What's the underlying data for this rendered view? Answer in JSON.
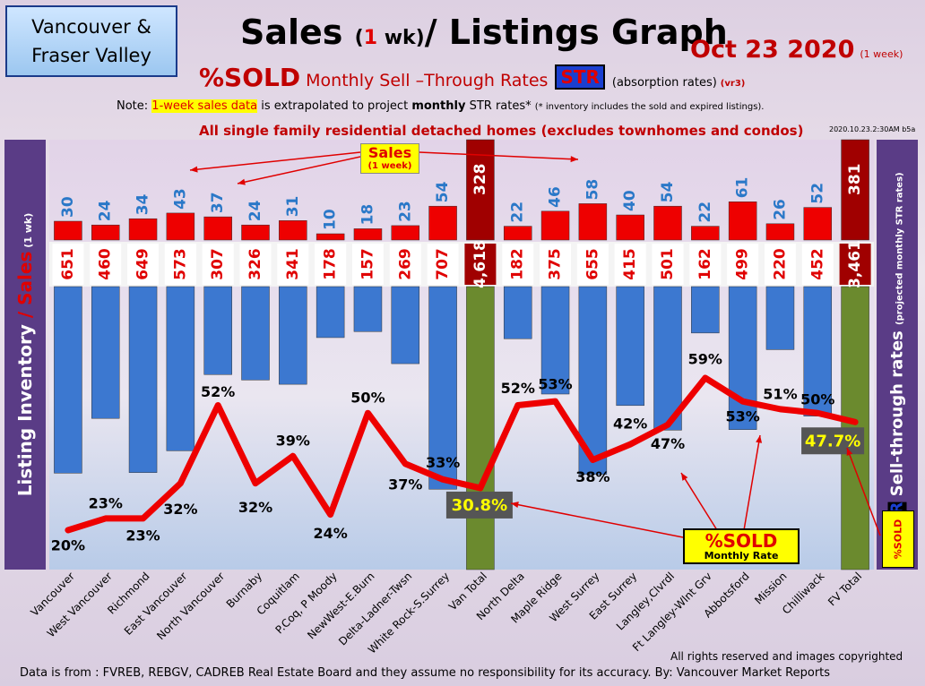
{
  "region": {
    "line1": "Vancouver &",
    "line2": "Fraser Valley"
  },
  "title": {
    "part1": "Sales ",
    "paren_open": "(",
    "num": "1",
    "wk": " wk)",
    "part2": "/ Listings Graph"
  },
  "date": {
    "text": "Oct 23  2020",
    "note": "(1 week)"
  },
  "subtitle": {
    "big": "%SOLD",
    "rest": " Monthly Sell –Through Rates",
    "badge": "STR",
    "abs": "(absorption rates)",
    "vr": "(vr3)"
  },
  "note": {
    "prefix": "Note: ",
    "highlight": "1-week sales data",
    "mid": " is extrapolated to project ",
    "bold": "monthly",
    "suffix": " STR rates* ",
    "small": "(* inventory includes the sold and expired listings)."
  },
  "scope": "All single family residential detached homes (excludes townhomes and condos)",
  "stamp": "2020.10.23.2:30AM b5a",
  "left_axis": {
    "part1": "Listing Inventory ",
    "slash": "/ ",
    "part2": "Sales",
    "small": " (1 wk)"
  },
  "right_axis": {
    "part1": "Sell-through rates ",
    "small": "(projected monthly STR rates)",
    "str": "STR",
    "sold": "%SOLD"
  },
  "sales_callout": {
    "title": "Sales",
    "sub": "(1 week)"
  },
  "sold_box": {
    "title": "%SOLD",
    "sub": "Monthly Rate"
  },
  "footer": {
    "rights": "All rights reserved and  images copyrighted",
    "source": "Data is from : FVREB, REBGV, CADREB Real Estate Board and they assume no responsibility for its accuracy. By: Vancouver Market Reports"
  },
  "colors": {
    "sales": "#ee0000",
    "inventory": "#3c78d0",
    "total_sales": "#a00000",
    "total_inventory": "#6b8a2e",
    "str_line": "#ee0000"
  },
  "chart_data": {
    "type": "bar",
    "categories": [
      "Vancouver",
      "West Vancouver",
      "Richmond",
      "East Vancouver",
      "North Vancouver",
      "Burnaby",
      "Coquitlam",
      "P.Coq, P Moody",
      "NewWest-E.Burn",
      "Delta-Ladner-Twsn",
      "White Rock-S.Surrey",
      "Van Total",
      "North Delta",
      "Maple Ridge",
      "West Surrey",
      "East Surrey",
      "Langley,Clvrdl",
      "Ft Langley-Wlnt Grv",
      "Abbotsford",
      "Mission",
      "Chilliwack",
      "FV Total"
    ],
    "series": [
      {
        "name": "Sales",
        "values": [
          30,
          24,
          34,
          43,
          37,
          24,
          31,
          10,
          18,
          23,
          54,
          328,
          22,
          46,
          58,
          40,
          54,
          22,
          61,
          26,
          52,
          381
        ]
      },
      {
        "name": "Listing Inventory",
        "values": [
          651,
          460,
          649,
          573,
          307,
          326,
          341,
          178,
          157,
          269,
          707,
          4618,
          182,
          375,
          655,
          415,
          501,
          162,
          499,
          220,
          452,
          3461
        ]
      },
      {
        "name": "%SOLD",
        "values": [
          20,
          23,
          23,
          32,
          52,
          32,
          39,
          24,
          50,
          37,
          33,
          30.8,
          52,
          53,
          38,
          42,
          47,
          59,
          53,
          51,
          50,
          47.7
        ]
      }
    ],
    "sales_labels": [
      "30",
      "24",
      "34",
      "43",
      "37",
      "24",
      "31",
      "10",
      "18",
      "23",
      "54",
      "328",
      "22",
      "46",
      "58",
      "40",
      "54",
      "22",
      "61",
      "26",
      "52",
      "381"
    ],
    "inventory_labels": [
      "651",
      "460",
      "649",
      "573",
      "307",
      "326",
      "341",
      "178",
      "157",
      "269",
      "707",
      "4,618",
      "182",
      "375",
      "655",
      "415",
      "501",
      "162",
      "499",
      "220",
      "452",
      "3,461"
    ],
    "str_labels": [
      "20%",
      "23%",
      "23%",
      "32%",
      "52%",
      "32%",
      "39%",
      "24%",
      "50%",
      "37%",
      "33%",
      "30.8%",
      "52%",
      "53%",
      "38%",
      "42%",
      "47%",
      "59%",
      "53%",
      "51%",
      "50%",
      "47.7%"
    ],
    "totals": [
      "Van Total",
      "FV Total"
    ]
  }
}
